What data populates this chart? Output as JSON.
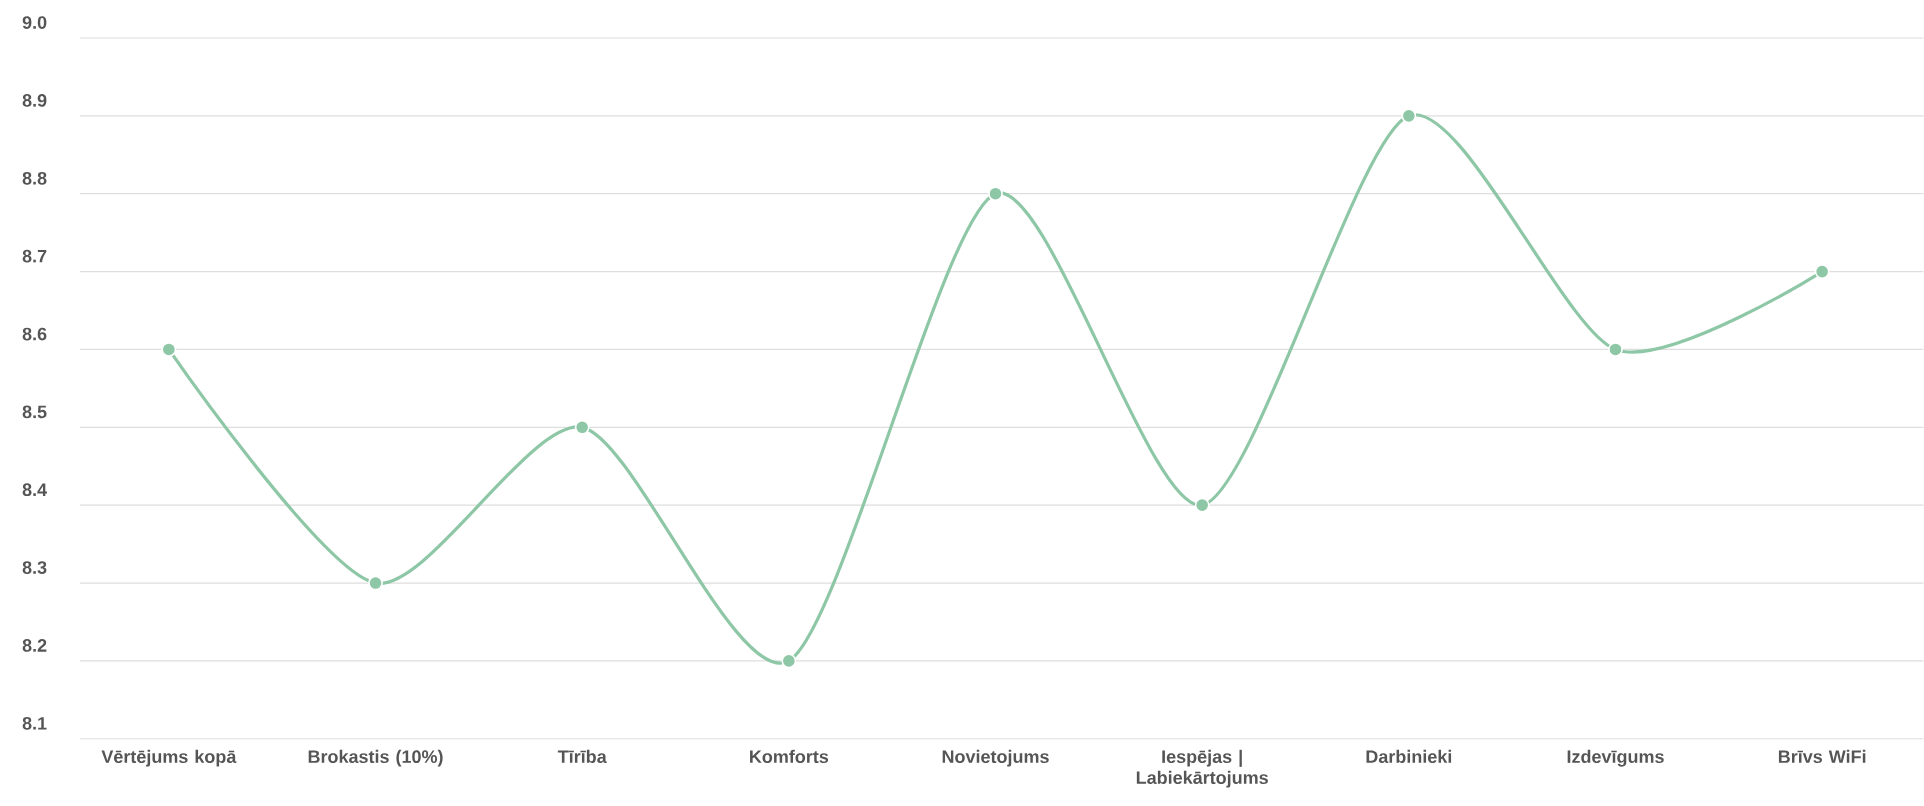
{
  "chart_data": {
    "type": "line",
    "categories": [
      "Vērtējums kopā",
      "Brokastis (10%)",
      "Tīrība",
      "Komforts",
      "Novietojums",
      "Iespējas | Labiekārtojums",
      "Darbinieki",
      "Izdevīgums",
      "Brīvs WiFi"
    ],
    "values": [
      8.6,
      8.3,
      8.5,
      8.2,
      8.8,
      8.4,
      8.9,
      8.6,
      8.7
    ],
    "color": "#8dc7a6",
    "ylim": [
      8.1,
      9.0
    ],
    "yticks": [
      8.1,
      8.2,
      8.3,
      8.4,
      8.5,
      8.6,
      8.7,
      8.8,
      8.9,
      {
        "value": 9,
        "label": "9.0"
      }
    ],
    "grid": "y",
    "marker": "circle",
    "line_style": "solid"
  }
}
